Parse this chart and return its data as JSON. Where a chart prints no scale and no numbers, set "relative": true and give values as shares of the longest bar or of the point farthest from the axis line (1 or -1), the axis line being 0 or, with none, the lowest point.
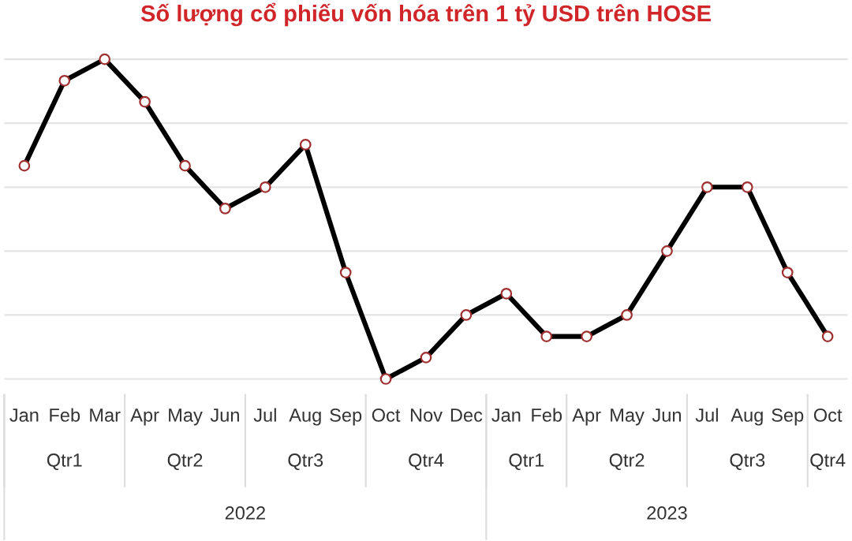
{
  "chart_data": {
    "type": "line",
    "title": "Số lượng cổ phiếu vốn hóa trên 1 tỷ USD trên HOSE",
    "categories": [
      "Jan",
      "Feb",
      "Mar",
      "Apr",
      "May",
      "Jun",
      "Jul",
      "Aug",
      "Sep",
      "Oct",
      "Nov",
      "Dec",
      "Jan",
      "Feb",
      "Apr",
      "May",
      "Jun",
      "Jul",
      "Aug",
      "Sep",
      "Oct"
    ],
    "series": [
      {
        "color": "#000000",
        "values": [
          0.667,
          0.933,
          1,
          0.867,
          0.667,
          0.533,
          0.6,
          0.733,
          0.333,
          0,
          0.067,
          0.2,
          0.267,
          0.133,
          0.133,
          0.2,
          0.4,
          0.6,
          0.6,
          0.333,
          0.133
        ]
      }
    ],
    "relative": true,
    "grid": "y",
    "marker": "circle",
    "line_style": "solid",
    "legend": false,
    "annotations": [
      "Qtr1",
      "Qtr2",
      "Qtr3",
      "Qtr4",
      "Qtr1",
      "Qtr2",
      "Qtr3",
      "Qtr4",
      "2022",
      "2023"
    ]
  }
}
